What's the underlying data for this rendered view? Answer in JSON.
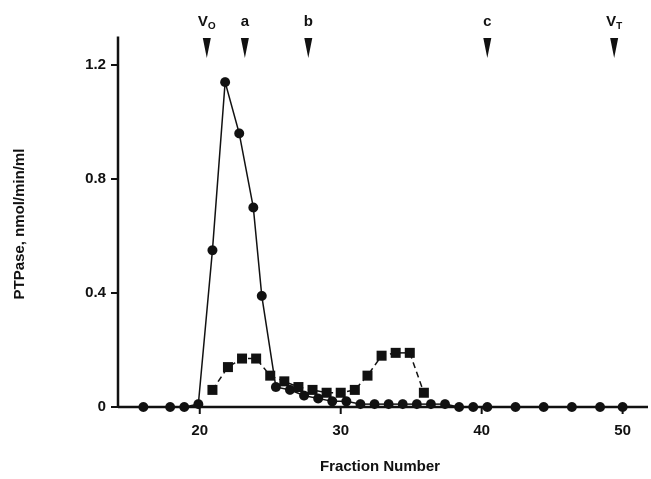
{
  "chart_data": {
    "type": "line",
    "xlabel": "Fraction Number",
    "ylabel": "PTPase, nmol/min/ml",
    "xlim": [
      14.2,
      51.8
    ],
    "ylim": [
      0,
      1.3
    ],
    "xticks": [
      20,
      30,
      40,
      50
    ],
    "yticks": [
      0,
      0.4,
      0.8,
      1.2
    ],
    "annotations": [
      {
        "x": 20.5,
        "text": "V",
        "sub": "O"
      },
      {
        "x": 23.2,
        "text": "a"
      },
      {
        "x": 27.7,
        "text": "b"
      },
      {
        "x": 40.4,
        "text": "c"
      },
      {
        "x": 49.4,
        "text": "V",
        "sub": "T"
      }
    ],
    "series": [
      {
        "marker": "circle",
        "dashed": false,
        "color": "#111",
        "x": [
          16,
          17.9,
          18.9,
          19.9,
          20.9,
          21.8,
          22.8,
          23.8,
          24.4,
          25.4,
          26.4,
          27.4,
          28.4,
          29.4,
          30.4,
          31.4,
          32.4,
          33.4,
          34.4,
          35.4,
          36.4,
          37.4,
          38.4,
          39.4,
          40.4,
          42.4,
          44.4,
          46.4,
          48.4,
          50
        ],
        "values": [
          0,
          0,
          0,
          0.01,
          0.55,
          1.14,
          0.96,
          0.7,
          0.39,
          0.07,
          0.06,
          0.04,
          0.03,
          0.02,
          0.02,
          0.01,
          0.01,
          0.01,
          0.01,
          0.01,
          0.01,
          0.01,
          0,
          0,
          0,
          0,
          0,
          0,
          0,
          0
        ]
      },
      {
        "marker": "square",
        "dashed": true,
        "color": "#111",
        "x": [
          20.9,
          22,
          23,
          24,
          25,
          26,
          27,
          28,
          29,
          30,
          31,
          31.9,
          32.9,
          33.9,
          34.9,
          35.9
        ],
        "values": [
          0.06,
          0.14,
          0.17,
          0.17,
          0.11,
          0.09,
          0.07,
          0.06,
          0.05,
          0.05,
          0.06,
          0.11,
          0.18,
          0.19,
          0.19,
          0.05
        ]
      }
    ]
  }
}
